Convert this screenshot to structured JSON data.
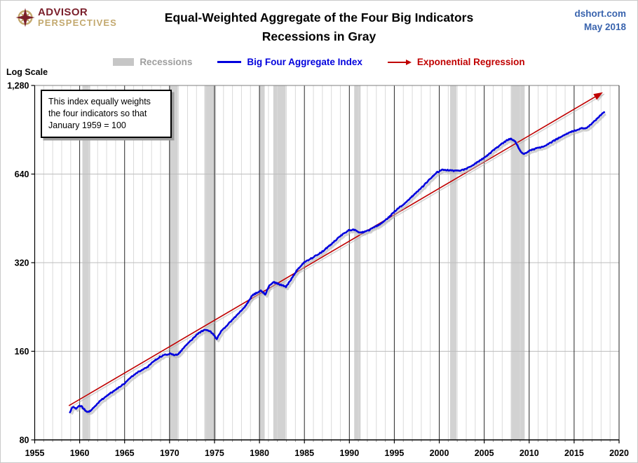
{
  "brand": {
    "name_top": "ADVISOR",
    "name_bottom": "PERSPECTIVES"
  },
  "header": {
    "title_line1": "Equal-Weighted Aggregate of the Four Big Indicators",
    "title_line2": "Recessions in Gray",
    "source": "dshort.com",
    "date": "May 2018"
  },
  "legend": {
    "items": [
      {
        "label": "Recessions",
        "swatch": "gray-rect",
        "color": "#9e9e9e"
      },
      {
        "label": "Big Four Aggregate Index",
        "swatch": "blue-line",
        "color": "#0101dd"
      },
      {
        "label": "Exponential Regression",
        "swatch": "red-arrow",
        "color": "#c00000"
      }
    ]
  },
  "annotation": {
    "lines": [
      "This index equally weights",
      "the four indicators  so that",
      "January 1959 = 100"
    ]
  },
  "chart_data": {
    "type": "line",
    "title": "Equal-Weighted Aggregate of the Four Big Indicators",
    "subtitle": "Recessions in Gray",
    "x_axis": {
      "min": 1955,
      "max": 2020,
      "tick_interval": 5,
      "ticks": [
        1955,
        1960,
        1965,
        1970,
        1975,
        1980,
        1985,
        1990,
        1995,
        2000,
        2005,
        2010,
        2015,
        2020
      ]
    },
    "y_axis": {
      "label": "Log Scale",
      "scale": "log2",
      "min": 80,
      "max": 1280,
      "ticks": [
        80,
        160,
        320,
        640,
        1280
      ],
      "tick_labels": [
        "80",
        "160",
        "320",
        "640",
        "1,280"
      ]
    },
    "grid": {
      "minor_vertical_every_years": 1,
      "major_vertical_every_years": 5,
      "horizontal_at_ticks": true
    },
    "legend_position": "top-center",
    "recessions": [
      [
        1960.3,
        1961.17
      ],
      [
        1969.95,
        1970.92
      ],
      [
        1973.88,
        1975.17
      ],
      [
        1980.0,
        1980.58
      ],
      [
        1981.54,
        1982.92
      ],
      [
        1990.54,
        1991.25
      ],
      [
        2001.2,
        2001.92
      ],
      [
        2007.95,
        2009.5
      ]
    ],
    "series": [
      {
        "name": "Big Four Aggregate Index",
        "color": "#0101dd",
        "style": "wiggly-line",
        "points": [
          [
            1958.92,
            99
          ],
          [
            1959.1,
            102
          ],
          [
            1959.3,
            103.5
          ],
          [
            1959.6,
            102
          ],
          [
            1959.9,
            104.5
          ],
          [
            1960.2,
            104
          ],
          [
            1960.6,
            101
          ],
          [
            1960.9,
            99.5
          ],
          [
            1961.2,
            100.5
          ],
          [
            1961.7,
            104
          ],
          [
            1962.2,
            108
          ],
          [
            1963,
            113
          ],
          [
            1964,
            118.5
          ],
          [
            1965,
            124.5
          ],
          [
            1965.8,
            131.5
          ],
          [
            1966.5,
            136
          ],
          [
            1967.1,
            139
          ],
          [
            1967.5,
            141
          ],
          [
            1968.2,
            148
          ],
          [
            1969,
            153.5
          ],
          [
            1969.6,
            156
          ],
          [
            1970.1,
            157
          ],
          [
            1970.55,
            155.5
          ],
          [
            1970.9,
            156
          ],
          [
            1971.5,
            163
          ],
          [
            1972.2,
            172
          ],
          [
            1973,
            182
          ],
          [
            1973.6,
            187.5
          ],
          [
            1974,
            189
          ],
          [
            1974.5,
            187
          ],
          [
            1974.9,
            182
          ],
          [
            1975.25,
            176.5
          ],
          [
            1975.8,
            188
          ],
          [
            1976.4,
            196
          ],
          [
            1977,
            205
          ],
          [
            1977.8,
            217
          ],
          [
            1978.5,
            229
          ],
          [
            1979.2,
            248
          ],
          [
            1979.8,
            254
          ],
          [
            1980.15,
            257
          ],
          [
            1980.65,
            250
          ],
          [
            1981.1,
            267
          ],
          [
            1981.55,
            275
          ],
          [
            1982.1,
            271
          ],
          [
            1982.55,
            268
          ],
          [
            1982.95,
            265
          ],
          [
            1983.5,
            280
          ],
          [
            1984.2,
            302
          ],
          [
            1985,
            321
          ],
          [
            1986,
            334
          ],
          [
            1987,
            349
          ],
          [
            1988,
            370
          ],
          [
            1989,
            394
          ],
          [
            1989.9,
            412
          ],
          [
            1990.45,
            415
          ],
          [
            1991.25,
            404
          ],
          [
            1991.9,
            409
          ],
          [
            1992.6,
            419
          ],
          [
            1993.3,
            431
          ],
          [
            1994.2,
            451
          ],
          [
            1995.2,
            483
          ],
          [
            1996.2,
            510
          ],
          [
            1997.2,
            545
          ],
          [
            1998.2,
            582
          ],
          [
            1999,
            618
          ],
          [
            1999.7,
            648
          ],
          [
            2000.4,
            663
          ],
          [
            2001.1,
            660
          ],
          [
            2001.6,
            656
          ],
          [
            2002.2,
            658
          ],
          [
            2002.9,
            665
          ],
          [
            2003.7,
            685
          ],
          [
            2004.5,
            710
          ],
          [
            2005.3,
            738
          ],
          [
            2006.2,
            778
          ],
          [
            2007,
            812
          ],
          [
            2007.6,
            836
          ],
          [
            2008,
            843
          ],
          [
            2008.45,
            828
          ],
          [
            2008.8,
            788
          ],
          [
            2009.1,
            758
          ],
          [
            2009.45,
            748
          ],
          [
            2010,
            768
          ],
          [
            2010.8,
            783
          ],
          [
            2011.5,
            792
          ],
          [
            2012.2,
            812
          ],
          [
            2013,
            839
          ],
          [
            2013.8,
            866
          ],
          [
            2014.6,
            890
          ],
          [
            2015.3,
            905
          ],
          [
            2015.9,
            916
          ],
          [
            2016.4,
            918
          ],
          [
            2017,
            952
          ],
          [
            2017.5,
            983
          ],
          [
            2017.9,
            1010
          ],
          [
            2018.2,
            1030
          ],
          [
            2018.35,
            1038
          ]
        ]
      },
      {
        "name": "Exponential Regression",
        "color": "#c00000",
        "style": "straight-arrow",
        "points": [
          [
            1958.8,
            104.5
          ],
          [
            2018.2,
            1213
          ]
        ]
      }
    ],
    "colors": {
      "recession_band": "#d2d2d2",
      "grid_minor": "#dadada",
      "grid_major_vertical": "#262626",
      "grid_horizontal": "#bdbdbd",
      "axis": "#000000",
      "shadow": "#b3b3b3"
    }
  }
}
